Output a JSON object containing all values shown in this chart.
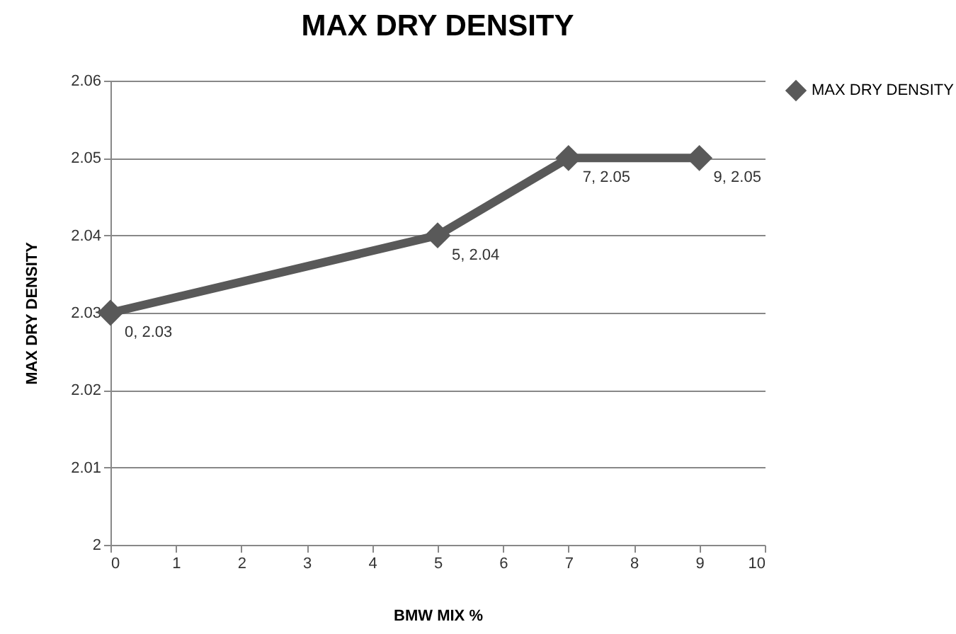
{
  "chart_data": {
    "type": "line",
    "title": "MAX DRY DENSITY",
    "xlabel": "BMW MIX %",
    "ylabel": "MAX DRY DENSITY",
    "x": [
      0,
      5,
      7,
      9
    ],
    "series": [
      {
        "name": "MAX DRY DENSITY",
        "color": "#595959",
        "values": [
          2.03,
          2.04,
          2.05,
          2.05
        ],
        "value_labels": [
          "0, 2.03",
          "5, 2.04",
          "7, 2.05",
          "9, 2.05"
        ]
      }
    ],
    "xlim": [
      0,
      10
    ],
    "xticks": [
      0,
      1,
      2,
      3,
      4,
      5,
      6,
      7,
      8,
      9,
      10
    ],
    "ylim": [
      2,
      2.06
    ],
    "yticks": [
      2,
      2.01,
      2.02,
      2.03,
      2.04,
      2.05,
      2.06
    ],
    "grid": "y",
    "legend": "right",
    "marker": "diamond",
    "line_style": "solid"
  }
}
